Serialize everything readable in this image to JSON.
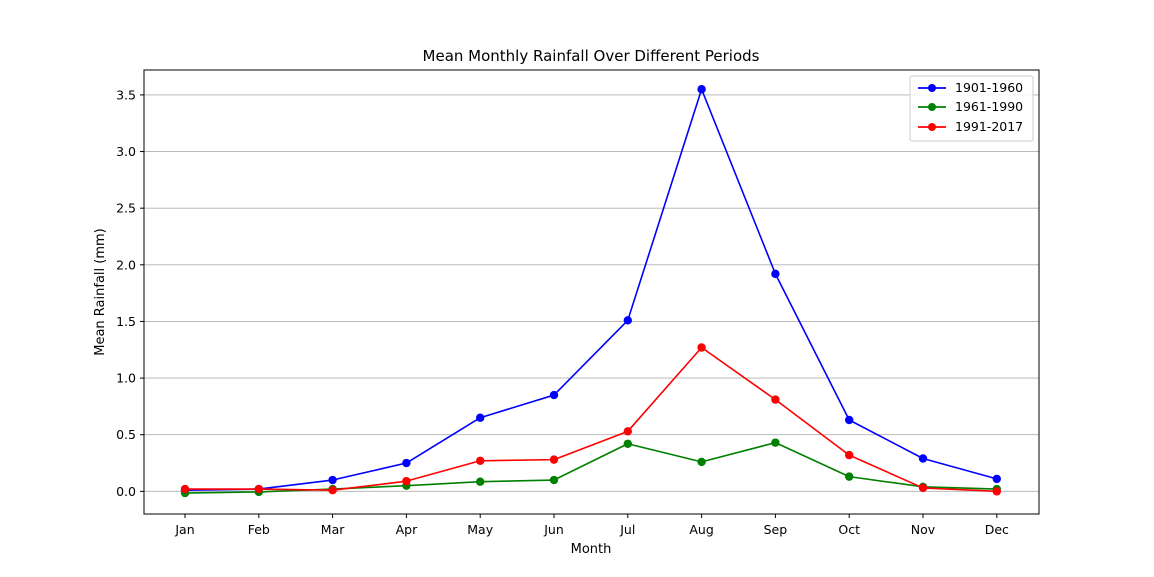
{
  "chart_data": {
    "type": "line",
    "title": "Mean Monthly Rainfall Over Different Periods",
    "xlabel": "Month",
    "ylabel": "Mean Rainfall (mm)",
    "categories": [
      "Jan",
      "Feb",
      "Mar",
      "Apr",
      "May",
      "Jun",
      "Jul",
      "Aug",
      "Sep",
      "Oct",
      "Nov",
      "Dec"
    ],
    "ylim": [
      -0.2,
      3.72
    ],
    "yticks": [
      0.0,
      0.5,
      1.0,
      1.5,
      2.0,
      2.5,
      3.0,
      3.5
    ],
    "ytick_labels": [
      "0.0",
      "0.5",
      "1.0",
      "1.5",
      "2.0",
      "2.5",
      "3.0",
      "3.5"
    ],
    "grid": "horizontal",
    "legend_position": "top-right",
    "series": [
      {
        "name": "1901-1960",
        "color": "#0000ff",
        "values": [
          0.01,
          0.02,
          0.1,
          0.25,
          0.65,
          0.85,
          1.51,
          3.55,
          1.92,
          0.63,
          0.29,
          0.11
        ]
      },
      {
        "name": "1961-1990",
        "color": "#008000",
        "values": [
          -0.015,
          -0.005,
          0.02,
          0.05,
          0.085,
          0.1,
          0.42,
          0.26,
          0.43,
          0.13,
          0.04,
          0.02
        ]
      },
      {
        "name": "1991-2017",
        "color": "#ff0000",
        "values": [
          0.02,
          0.02,
          0.01,
          0.09,
          0.27,
          0.28,
          0.53,
          1.27,
          0.81,
          0.32,
          0.03,
          0.0
        ]
      }
    ]
  }
}
